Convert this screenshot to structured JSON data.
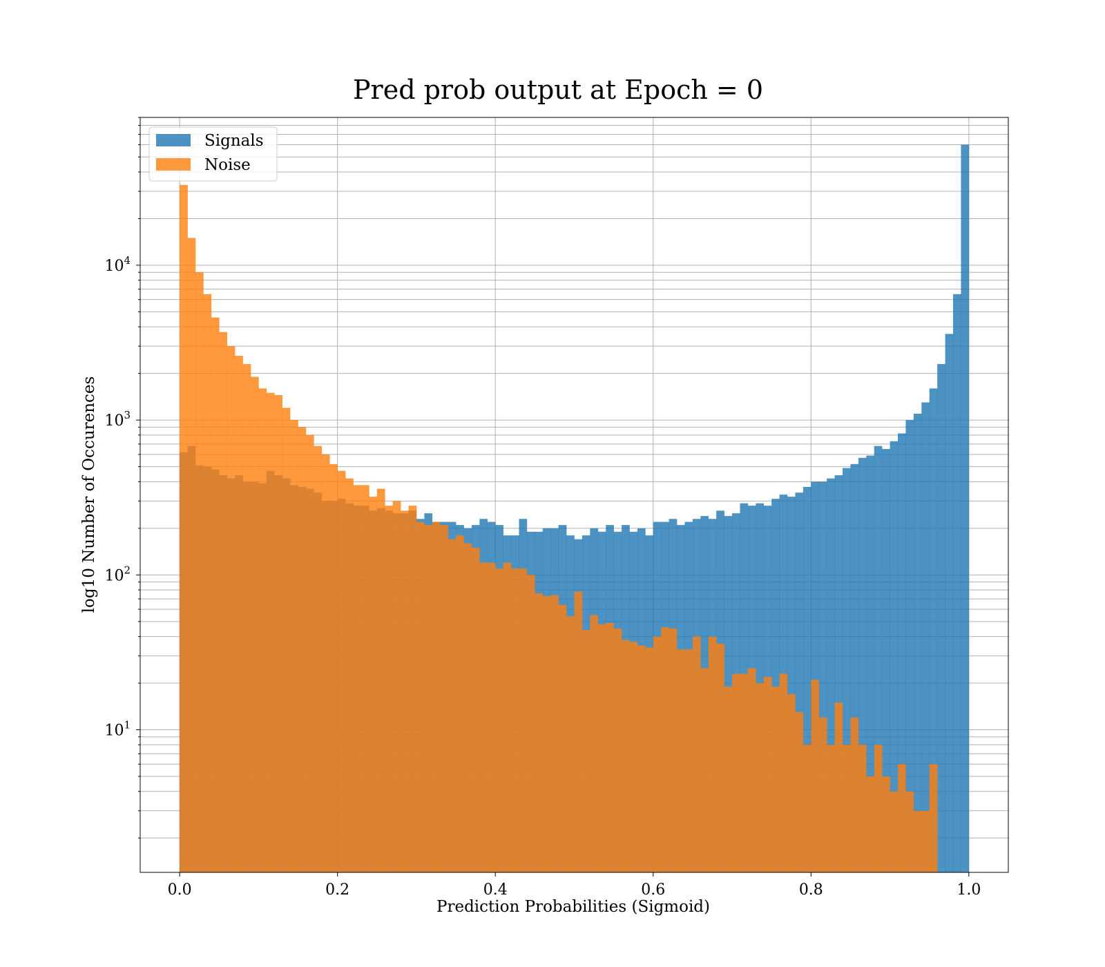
{
  "chart_data": {
    "type": "bar",
    "title": "Pred prob output at Epoch = 0",
    "xlabel": "Prediction Probabilities (Sigmoid)",
    "ylabel": "log10 Number of Occurences",
    "xlim": [
      -0.05,
      1.05
    ],
    "ylim": [
      1.2,
      90000
    ],
    "yscale": "log",
    "grid": true,
    "legend_position": "upper-left",
    "bin_edges_range": [
      0.0,
      1.0
    ],
    "bins": 100,
    "xticks": [
      0.0,
      0.2,
      0.4,
      0.6,
      0.8,
      1.0
    ],
    "xtick_labels": [
      "0.0",
      "0.2",
      "0.4",
      "0.6",
      "0.8",
      "1.0"
    ],
    "yticks": [
      {
        "value": 10,
        "base": "10",
        "exp": "1"
      },
      {
        "value": 100,
        "base": "10",
        "exp": "2"
      },
      {
        "value": 1000,
        "base": "10",
        "exp": "3"
      },
      {
        "value": 10000,
        "base": "10",
        "exp": "4"
      }
    ],
    "series": [
      {
        "name": "Signals",
        "color": "#1f77b4",
        "opacity": 0.8,
        "values": [
          620,
          680,
          510,
          500,
          480,
          440,
          420,
          440,
          400,
          400,
          390,
          470,
          440,
          420,
          380,
          370,
          360,
          340,
          300,
          300,
          310,
          290,
          280,
          280,
          260,
          270,
          260,
          250,
          250,
          260,
          230,
          250,
          220,
          220,
          220,
          210,
          200,
          210,
          230,
          220,
          210,
          180,
          180,
          230,
          190,
          190,
          200,
          200,
          210,
          180,
          170,
          180,
          200,
          190,
          210,
          190,
          210,
          190,
          200,
          180,
          220,
          220,
          230,
          210,
          220,
          230,
          240,
          230,
          260,
          240,
          250,
          290,
          280,
          290,
          280,
          310,
          330,
          320,
          340,
          370,
          400,
          400,
          420,
          440,
          490,
          520,
          570,
          590,
          680,
          650,
          730,
          820,
          1000,
          1100,
          1300,
          1600,
          2300,
          3600,
          6500,
          60000
        ]
      },
      {
        "name": "Noise",
        "color": "#ff7f0e",
        "opacity": 0.8,
        "values": [
          33000,
          15000,
          9000,
          6500,
          4600,
          3700,
          3000,
          2600,
          2300,
          1900,
          1600,
          1500,
          1450,
          1200,
          1000,
          900,
          800,
          680,
          600,
          520,
          470,
          420,
          380,
          380,
          320,
          360,
          280,
          300,
          260,
          280,
          220,
          210,
          220,
          210,
          170,
          180,
          160,
          150,
          120,
          120,
          110,
          120,
          110,
          110,
          100,
          76,
          73,
          74,
          64,
          54,
          78,
          44,
          55,
          48,
          49,
          45,
          38,
          37,
          35,
          34,
          40,
          46,
          45,
          33,
          33,
          40,
          25,
          40,
          36,
          19,
          23,
          23,
          25,
          20,
          22,
          19,
          23,
          17,
          13,
          8,
          21,
          12,
          8,
          15,
          8,
          12,
          8,
          5,
          8,
          5,
          4,
          6,
          4,
          3,
          3,
          6,
          1,
          1,
          0,
          0
        ]
      }
    ]
  }
}
